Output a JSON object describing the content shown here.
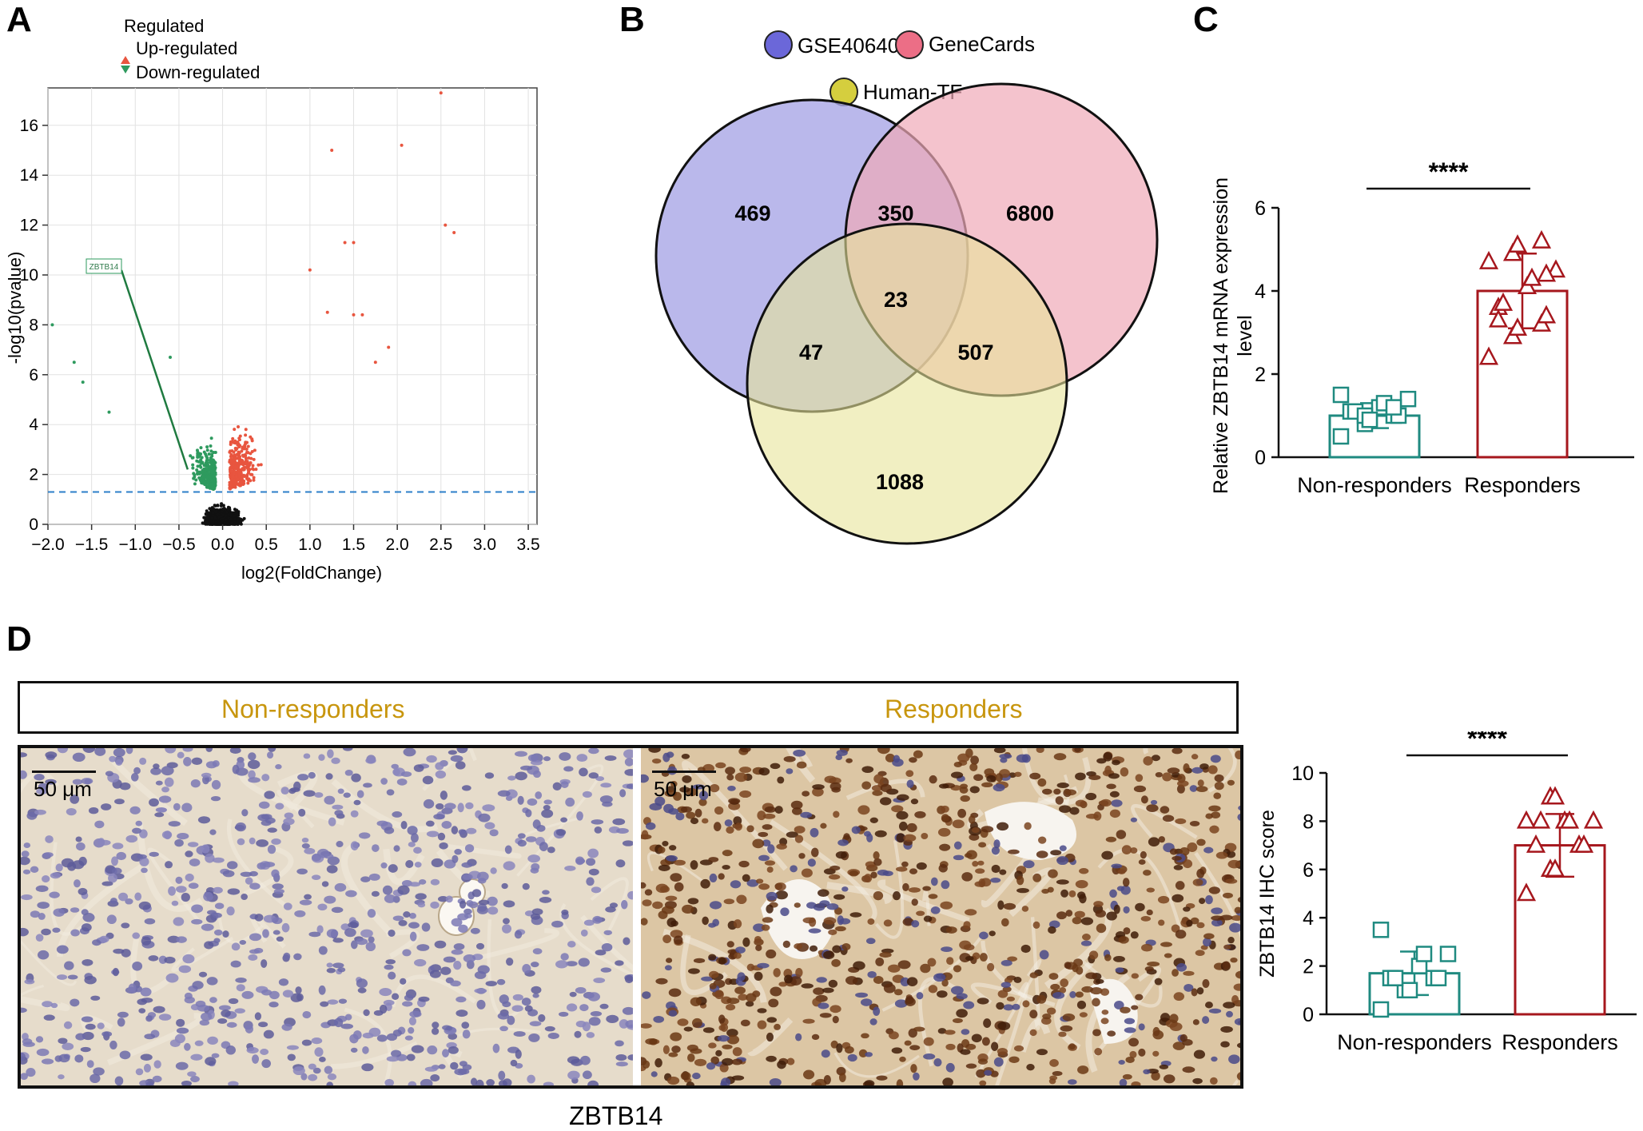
{
  "figure": {
    "panels": [
      "A",
      "B",
      "C",
      "D"
    ],
    "panelD": {
      "groups": [
        "Non-responders",
        "Responders"
      ],
      "scale_bar": "50 μm",
      "stain": "ZBTB14"
    }
  },
  "colors": {
    "up": "#e8553f",
    "down": "#2e9a5e",
    "ns": "#111111",
    "threshold": "#2c7fc9",
    "venn1": "#a9a6e6",
    "venn2": "#f0a9b8",
    "venn3": "#e8e59a",
    "nonresp": "#1f8a80",
    "resp": "#a6171d",
    "ihc_label": "#c8960e"
  },
  "chart_data": [
    {
      "type": "scatter",
      "title": "",
      "legend_title": "Regulated",
      "legend": [
        "Up-regulated",
        "Down-regulated"
      ],
      "xlabel": "log2(FoldChange)",
      "ylabel": "-log10(pvalue)",
      "xlim": [
        -2.0,
        3.6
      ],
      "ylim": [
        0,
        17.5
      ],
      "xticks": [
        "−2.0",
        "−1.5",
        "−1.0",
        "−0.5",
        "0.0",
        "0.5",
        "1.0",
        "1.5",
        "2.0",
        "2.5",
        "3.0",
        "3.5"
      ],
      "xtick_values": [
        -2.0,
        -1.5,
        -1.0,
        -0.5,
        0.0,
        0.5,
        1.0,
        1.5,
        2.0,
        2.5,
        3.0,
        3.5
      ],
      "yticks": [
        "0",
        "2",
        "4",
        "6",
        "8",
        "10",
        "12",
        "14",
        "16"
      ],
      "ytick_values": [
        0,
        2,
        4,
        6,
        8,
        10,
        12,
        14,
        16
      ],
      "threshold_y": 1.3,
      "annotation": {
        "label": "ZBTB14",
        "x": -0.4,
        "y": 2.2
      },
      "highlight_points": [
        {
          "x": 2.5,
          "y": 17.3,
          "group": "up"
        },
        {
          "x": 2.05,
          "y": 15.2,
          "group": "up"
        },
        {
          "x": 1.25,
          "y": 15.0,
          "group": "up"
        },
        {
          "x": 2.55,
          "y": 12.0,
          "group": "up"
        },
        {
          "x": 2.65,
          "y": 11.7,
          "group": "up"
        },
        {
          "x": 1.4,
          "y": 11.3,
          "group": "up"
        },
        {
          "x": 1.5,
          "y": 11.3,
          "group": "up"
        },
        {
          "x": 1.0,
          "y": 10.2,
          "group": "up"
        },
        {
          "x": 1.5,
          "y": 8.4,
          "group": "up"
        },
        {
          "x": 1.6,
          "y": 8.4,
          "group": "up"
        },
        {
          "x": 1.2,
          "y": 8.5,
          "group": "up"
        },
        {
          "x": 1.9,
          "y": 7.1,
          "group": "up"
        },
        {
          "x": 1.75,
          "y": 6.5,
          "group": "up"
        },
        {
          "x": -1.95,
          "y": 8.0,
          "group": "down"
        },
        {
          "x": -1.7,
          "y": 6.5,
          "group": "down"
        },
        {
          "x": -1.6,
          "y": 5.7,
          "group": "down"
        },
        {
          "x": -0.6,
          "y": 6.7,
          "group": "down"
        },
        {
          "x": -1.3,
          "y": 4.5,
          "group": "down"
        }
      ]
    },
    {
      "type": "venn",
      "sets": [
        "GSE40640",
        "GeneCards",
        "Human-TF"
      ],
      "regions": {
        "GSE40640_only": 469,
        "GSE40640_GeneCards": 350,
        "GeneCards_only": 6800,
        "all_three": 23,
        "GSE40640_HumanTF": 47,
        "GeneCards_HumanTF": 507,
        "HumanTF_only": 1088
      }
    },
    {
      "type": "bar",
      "ylabel": "Relative ZBTB14 mRNA expression level",
      "categories": [
        "Non-responders",
        "Responders"
      ],
      "values": [
        1.0,
        4.0
      ],
      "sd": [
        0.3,
        0.9
      ],
      "ylim": [
        0,
        6
      ],
      "yticks": [
        "0",
        "2",
        "4",
        "6"
      ],
      "ytick_values": [
        0,
        2,
        4,
        6
      ],
      "significance": "****",
      "points": [
        {
          "group": "Non-responders",
          "values": [
            0.5,
            0.8,
            0.9,
            1.0,
            1.0,
            1.1,
            1.1,
            1.2,
            1.3,
            1.4,
            1.5,
            1.0,
            0.9,
            1.2
          ]
        },
        {
          "group": "Responders",
          "values": [
            2.4,
            2.9,
            3.1,
            3.2,
            3.4,
            3.6,
            3.7,
            4.1,
            4.3,
            4.5,
            4.7,
            4.9,
            5.1,
            5.2,
            4.4,
            3.3
          ]
        }
      ]
    },
    {
      "type": "bar",
      "ylabel": "ZBTB14 IHC score",
      "categories": [
        "Non-responders",
        "Responders"
      ],
      "values": [
        1.7,
        7.0
      ],
      "sd": [
        0.9,
        1.3
      ],
      "ylim": [
        0,
        10
      ],
      "yticks": [
        "0",
        "2",
        "4",
        "6",
        "8",
        "10"
      ],
      "ytick_values": [
        0,
        2,
        4,
        6,
        8,
        10
      ],
      "significance": "****",
      "points": [
        {
          "group": "Non-responders",
          "values": [
            0.2,
            1.0,
            1.0,
            1.5,
            1.5,
            1.5,
            1.5,
            2.0,
            2.5,
            2.5,
            3.5
          ]
        },
        {
          "group": "Responders",
          "values": [
            5.0,
            6.0,
            6.0,
            7.0,
            7.0,
            7.0,
            8.0,
            8.0,
            8.0,
            8.0,
            8.0,
            9.0,
            9.0
          ]
        }
      ]
    }
  ]
}
